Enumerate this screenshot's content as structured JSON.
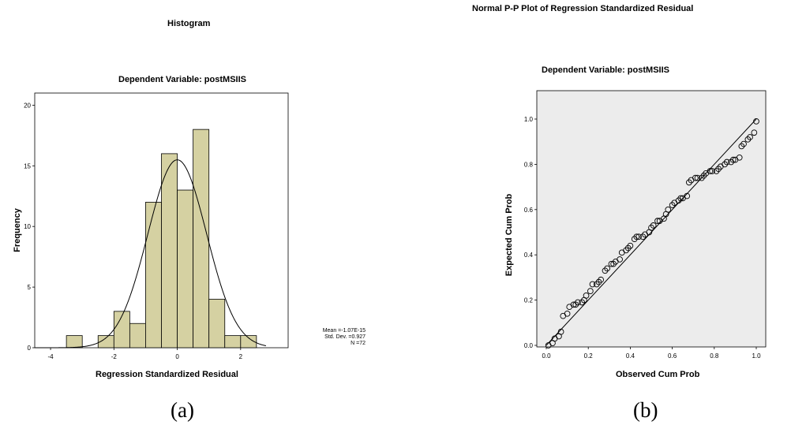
{
  "captions": {
    "a": "(a)",
    "b": "(b)"
  },
  "stats": {
    "mean": "Mean =-1.07E-15",
    "sd": "Std. Dev. =0.927",
    "n": "N =72"
  },
  "colors": {
    "bar": "#d5d1a2",
    "plot_bg": "#ececec",
    "stroke": "#000000"
  },
  "chart_data": [
    {
      "type": "bar",
      "subtype": "histogram",
      "title": "Histogram",
      "subtitle": "Dependent Variable: postMSIIS",
      "xlabel": "Regression Standardized Residual",
      "ylabel": "Frequency",
      "xlim": [
        -4.5,
        3.5
      ],
      "ylim": [
        0,
        21
      ],
      "xticks": [
        -4,
        -2,
        0,
        2
      ],
      "yticks": [
        0,
        5,
        10,
        15,
        20
      ],
      "bin_width": 0.5,
      "bins": [
        {
          "start": -3.5,
          "end": -3.0,
          "count": 1
        },
        {
          "start": -3.0,
          "end": -2.5,
          "count": 0
        },
        {
          "start": -2.5,
          "end": -2.0,
          "count": 1
        },
        {
          "start": -2.0,
          "end": -1.5,
          "count": 3
        },
        {
          "start": -1.5,
          "end": -1.0,
          "count": 2
        },
        {
          "start": -1.0,
          "end": -0.5,
          "count": 12
        },
        {
          "start": -0.5,
          "end": 0.0,
          "count": 16
        },
        {
          "start": 0.0,
          "end": 0.5,
          "count": 13
        },
        {
          "start": 0.5,
          "end": 1.0,
          "count": 18
        },
        {
          "start": 1.0,
          "end": 1.5,
          "count": 4
        },
        {
          "start": 1.5,
          "end": 2.0,
          "count": 1
        },
        {
          "start": 2.0,
          "end": 2.5,
          "count": 1
        }
      ],
      "normal_curve": {
        "mean": 0,
        "sd": 0.927,
        "n": 72
      },
      "grid": false,
      "legend": "none"
    },
    {
      "type": "scatter",
      "title": "Normal P-P Plot of Regression Standardized Residual",
      "subtitle": "Dependent Variable: postMSIIS",
      "xlabel": "Observed Cum Prob",
      "ylabel": "Expected Cum Prob",
      "xlim": [
        0,
        1
      ],
      "ylim": [
        0,
        1
      ],
      "xticks": [
        0.0,
        0.2,
        0.4,
        0.6,
        0.8,
        1.0
      ],
      "yticks": [
        0.0,
        0.2,
        0.4,
        0.6,
        0.8,
        1.0
      ],
      "reference_line": [
        [
          0,
          0
        ],
        [
          1,
          1
        ]
      ],
      "points": [
        [
          0.01,
          0.0
        ],
        [
          0.03,
          0.01
        ],
        [
          0.04,
          0.03
        ],
        [
          0.06,
          0.04
        ],
        [
          0.07,
          0.06
        ],
        [
          0.08,
          0.13
        ],
        [
          0.1,
          0.14
        ],
        [
          0.11,
          0.17
        ],
        [
          0.13,
          0.18
        ],
        [
          0.14,
          0.18
        ],
        [
          0.15,
          0.19
        ],
        [
          0.17,
          0.19
        ],
        [
          0.18,
          0.2
        ],
        [
          0.19,
          0.22
        ],
        [
          0.21,
          0.24
        ],
        [
          0.22,
          0.27
        ],
        [
          0.24,
          0.27
        ],
        [
          0.25,
          0.28
        ],
        [
          0.26,
          0.29
        ],
        [
          0.28,
          0.33
        ],
        [
          0.29,
          0.34
        ],
        [
          0.31,
          0.36
        ],
        [
          0.32,
          0.36
        ],
        [
          0.33,
          0.37
        ],
        [
          0.35,
          0.38
        ],
        [
          0.36,
          0.41
        ],
        [
          0.38,
          0.42
        ],
        [
          0.39,
          0.43
        ],
        [
          0.4,
          0.44
        ],
        [
          0.42,
          0.47
        ],
        [
          0.43,
          0.48
        ],
        [
          0.44,
          0.48
        ],
        [
          0.46,
          0.48
        ],
        [
          0.47,
          0.49
        ],
        [
          0.49,
          0.5
        ],
        [
          0.5,
          0.52
        ],
        [
          0.51,
          0.53
        ],
        [
          0.53,
          0.55
        ],
        [
          0.54,
          0.55
        ],
        [
          0.56,
          0.56
        ],
        [
          0.57,
          0.58
        ],
        [
          0.58,
          0.6
        ],
        [
          0.6,
          0.62
        ],
        [
          0.61,
          0.63
        ],
        [
          0.63,
          0.64
        ],
        [
          0.64,
          0.65
        ],
        [
          0.65,
          0.65
        ],
        [
          0.67,
          0.66
        ],
        [
          0.68,
          0.72
        ],
        [
          0.69,
          0.73
        ],
        [
          0.71,
          0.74
        ],
        [
          0.72,
          0.74
        ],
        [
          0.74,
          0.74
        ],
        [
          0.75,
          0.75
        ],
        [
          0.76,
          0.76
        ],
        [
          0.78,
          0.77
        ],
        [
          0.79,
          0.77
        ],
        [
          0.81,
          0.77
        ],
        [
          0.82,
          0.78
        ],
        [
          0.83,
          0.79
        ],
        [
          0.85,
          0.8
        ],
        [
          0.86,
          0.81
        ],
        [
          0.88,
          0.81
        ],
        [
          0.89,
          0.82
        ],
        [
          0.9,
          0.82
        ],
        [
          0.92,
          0.83
        ],
        [
          0.93,
          0.88
        ],
        [
          0.94,
          0.89
        ],
        [
          0.96,
          0.91
        ],
        [
          0.97,
          0.92
        ],
        [
          0.99,
          0.94
        ],
        [
          1.0,
          0.99
        ]
      ],
      "grid": false,
      "legend": "none"
    }
  ]
}
